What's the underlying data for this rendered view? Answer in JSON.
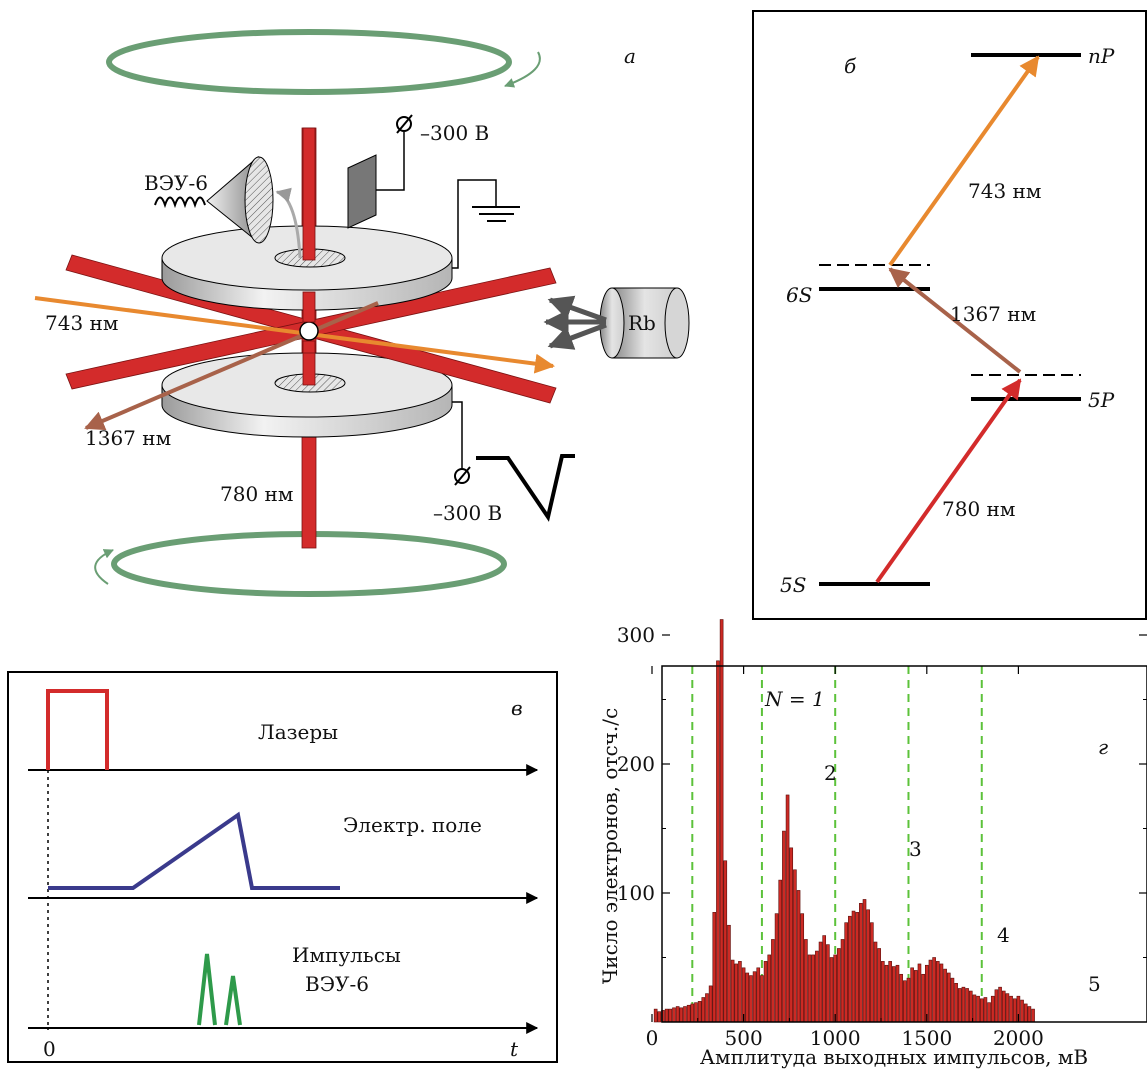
{
  "panel_a": {
    "letter": "а",
    "detector_label": "ВЭУ-6",
    "voltage_top": "–300 В",
    "voltage_bottom": "–300 В",
    "laser_743": "743 нм",
    "laser_1367": "1367 нм",
    "laser_780": "780 нм",
    "source_label": "Rb",
    "colors": {
      "coil": "#6a9e74",
      "laser_red": "#d32b2b",
      "laser_orange": "#e8892f",
      "laser_brown": "#a8624a"
    }
  },
  "panel_b": {
    "letter": "б",
    "level_nP": "nP",
    "level_6S": "6S",
    "level_5P": "5P",
    "level_5S": "5S",
    "wl_743": "743 нм",
    "wl_1367": "1367 нм",
    "wl_780": "780 нм"
  },
  "panel_c": {
    "letter": "в",
    "row_lasers": "Лазеры",
    "row_field": "Электр. поле",
    "row_pulses_1": "Импульсы",
    "row_pulses_2": "ВЭУ-6",
    "origin": "0",
    "time_axis": "t",
    "colors": {
      "lasers": "#d32b2b",
      "field": "#3a3a8c",
      "pulses": "#2e9a4a"
    }
  },
  "panel_d": {
    "letter": "г",
    "annotations": [
      "N = 1",
      "2",
      "3",
      "4",
      "5"
    ]
  },
  "chart_data": {
    "type": "bar",
    "xlabel": "Амплитуда выходных импульсов, мВ",
    "ylabel": "Число электронов, отсч./с",
    "xlim": [
      0,
      2200
    ],
    "ylim": [
      0,
      340
    ],
    "xticks": [
      0,
      500,
      1000,
      1500,
      2000
    ],
    "yticks": [
      100,
      200,
      300
    ],
    "grid": false,
    "bar_color": "#cc2a24",
    "threshold_lines_x": [
      220,
      600,
      1000,
      1400,
      1800
    ],
    "threshold_color": "#5cc23a",
    "x": [
      20,
      40,
      60,
      80,
      100,
      120,
      140,
      160,
      180,
      200,
      220,
      240,
      260,
      280,
      300,
      320,
      340,
      360,
      380,
      400,
      420,
      440,
      460,
      480,
      500,
      520,
      540,
      560,
      580,
      600,
      620,
      640,
      660,
      680,
      700,
      720,
      740,
      760,
      780,
      800,
      820,
      840,
      860,
      880,
      900,
      920,
      940,
      960,
      980,
      1000,
      1020,
      1040,
      1060,
      1080,
      1100,
      1120,
      1140,
      1160,
      1180,
      1200,
      1220,
      1240,
      1260,
      1280,
      1300,
      1320,
      1340,
      1360,
      1380,
      1400,
      1420,
      1440,
      1460,
      1480,
      1500,
      1520,
      1540,
      1560,
      1580,
      1600,
      1620,
      1640,
      1660,
      1680,
      1700,
      1720,
      1740,
      1760,
      1780,
      1800,
      1820,
      1840,
      1860,
      1880,
      1900,
      1920,
      1940,
      1960,
      1980,
      2000,
      2020,
      2040,
      2060,
      2080
    ],
    "values": [
      10,
      8,
      9,
      10,
      10,
      11,
      12,
      11,
      12,
      13,
      14,
      15,
      16,
      19,
      22,
      28,
      85,
      280,
      312,
      125,
      75,
      48,
      45,
      47,
      42,
      38,
      36,
      39,
      42,
      36,
      47,
      52,
      64,
      84,
      110,
      148,
      176,
      135,
      118,
      102,
      84,
      64,
      52,
      52,
      55,
      62,
      67,
      60,
      50,
      52,
      57,
      64,
      77,
      82,
      86,
      85,
      92,
      95,
      87,
      77,
      62,
      57,
      47,
      44,
      47,
      43,
      44,
      37,
      32,
      34,
      42,
      40,
      45,
      37,
      44,
      48,
      50,
      47,
      45,
      41,
      38,
      34,
      30,
      26,
      27,
      26,
      24,
      21,
      20,
      18,
      19,
      15,
      20,
      25,
      27,
      24,
      22,
      20,
      18,
      20,
      17,
      14,
      12,
      10
    ]
  }
}
